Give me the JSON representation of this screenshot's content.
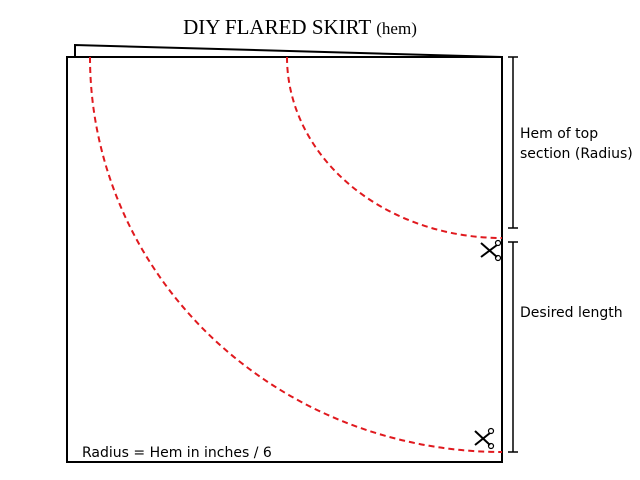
{
  "title": {
    "main": "DIY FLARED SKIRT",
    "suffix": "(hem)"
  },
  "labels": {
    "top_section": [
      "Hem of top",
      "section (Radius)"
    ],
    "length": "Desired length",
    "formula": "Radius = Hem in inches / 6"
  }
}
